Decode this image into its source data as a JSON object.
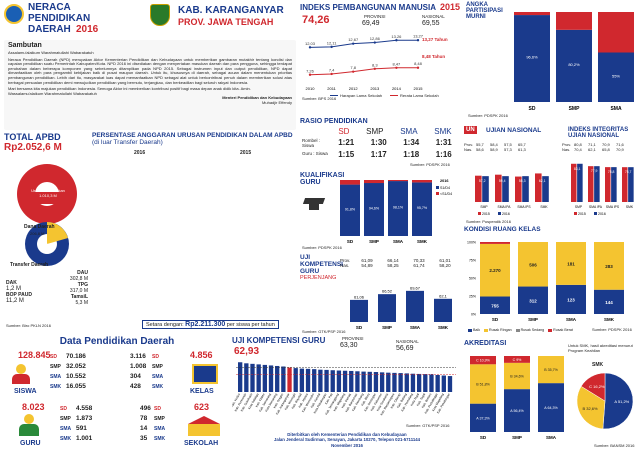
{
  "header": {
    "title_line1": "NERACA",
    "title_line2": "PENDIDIKAN",
    "title_line3": "DAERAH",
    "year": "2016",
    "region": "KAB. KARANGANYAR",
    "province": "PROV. JAWA TENGAH"
  },
  "sambutan": {
    "title": "Sambutan",
    "greeting": "Assalamu'alaikum Warahmatullahi Wabarakatuh",
    "paragraph1": "Neraca Pendidikan Daerah (NPD) merupakan Aktor Kementerian Pendidikan dan Kebudayaan untuk memberikan gambaran mutakhir tentang kondisi dan capaian pendidikan suatu Pemerintah Kabupaten/Kota. NPD 2016 ini disediakan dengan menyertakan masukan daerah dan para pengguna, sehingga terdapat perubahan dalam beberapa komponen yang sebelumnya ditampilkan pada NPD 2015. Sebagai instrumen input dan output pendidikan, NPD dapat dimanfaatkan oleh para pengambil kebijakan baik di pusat maupun daerah. Untuk itu, khususnya di daerah, sebagai acuan dalam menentukan prioritas pembangunan pendidikan. Lebih dari itu, masyarakat luas dapat memanfaatkan NPD sebagai alat untuk berkontribusi penuh dalam memberikan solusi atas berbagai persoalan pendidikan demi mewujudkan pendidikan yang bermutu, terjangkau, dan berkeadilan bagi seluruh rakyat Indonesia.",
    "paragraph2": "Mari bersama kita majukan pendidikan Indonesia. Semoga Aktor ini memberikan kontribusi positif bagi masa depan anak didik kita. Amin.",
    "closing": "Wassalamu'alaikum Warahmatullahi Wabarakatuh",
    "signature_title": "Menteri Pendidikan dan Kebudayaan",
    "signature_name": "Muhadjir Effendy"
  },
  "apbd": {
    "title": "TOTAL APBD",
    "total": "Rp2.052,6 M",
    "legend_urusan": "Urusan Pendidikan",
    "legend_urusan_val": "1.010,3 M",
    "dana_daerah": "Dana Daerah",
    "dana_daerah_val": "206,8 M",
    "transfer_daerah": "Transfer Daerah",
    "transfer_val": "803,5 M",
    "items_left": [
      {
        "label": "DAK",
        "value": "1,2 M"
      },
      {
        "label": "BOP PAUD",
        "value": "11,2 M"
      }
    ],
    "items_right": [
      {
        "label": "DAU",
        "value": "302,8 M"
      },
      {
        "label": "TPG",
        "value": "317,0 M"
      },
      {
        "label": "TamsiL",
        "value": "5,3 M"
      }
    ],
    "source": "Sumber: Biro PKLN 2016"
  },
  "anggaran": {
    "title": "PERSENTASE ANGGARAN URUSAN PENDIDIKAN DALAM APBD",
    "subtitle": "(di luar Transfer Daerah)",
    "year_left": "2016",
    "year_right": "2015",
    "setara_label": "Setara dengan:",
    "setara_value": "Rp2.211.300",
    "setara_suffix": "per siswa per tahun"
  },
  "ipm": {
    "title": "INDEKS PEMBANGUNAN MANUSIA",
    "year": "2015",
    "value": "74,26",
    "provinsi_label": "PROVINSI",
    "provinsi_value": "69,49",
    "nasional_label": "NASIONAL",
    "nasional_value": "69,55",
    "harapan_label": "13,27 Tahun",
    "rata_label": "8,48 Tahun",
    "years_x": [
      "2010",
      "2011",
      "2012",
      "2013",
      "2014",
      "2015"
    ],
    "legend_harapan": "Harapan Lama Sekolah",
    "legend_rata": "Rerata Lama Sekolah",
    "source": "Sumber: BPS 2016"
  },
  "apm": {
    "title": "ANGKA PARTISIPASI MURNI",
    "categories": [
      "SD",
      "SMP",
      "SMA"
    ],
    "source": "Sumber: PDSPK 2016"
  },
  "rasio": {
    "title": "RASIO PENDIDIKAN",
    "levels": [
      "SD",
      "SMP",
      "SMA",
      "SMK"
    ],
    "rombel_label": "Rombel : Siswa",
    "guru_label": "Guru : Siswa",
    "rombel": [
      "1:21",
      "1:30",
      "1:34",
      "1:31"
    ],
    "guru": [
      "1:15",
      "1:17",
      "1:18",
      "1:16"
    ],
    "source": "Sumber: PDSPK 2016"
  },
  "kualifikasi": {
    "title": "KUALIFIKASI GURU",
    "legend": [
      "2016",
      "S1/D4",
      "<S1/D4"
    ],
    "categories": [
      "SD",
      "SMP",
      "SMA",
      "SMK"
    ],
    "source": "Sumber: PDSPK 2016"
  },
  "ukg": {
    "title": "UJI KOMPETENSI GURU",
    "subtitle": "PERJENJANG",
    "rows": [
      {
        "label": "Prov.",
        "values": [
          "61,09",
          "66,14",
          "70,33",
          "61,01"
        ]
      },
      {
        "label": "Nas.",
        "values": [
          "54,89",
          "58,25",
          "61,74",
          "58,20"
        ]
      }
    ],
    "source": "Sumber: GTK/PSP 2016"
  },
  "un": {
    "title": "UJIAN NASIONAL",
    "tag": "UN",
    "rows": [
      {
        "label": "Prov.",
        "values": [
          "55,7",
          "58,4",
          "57,5",
          "65,7"
        ]
      },
      {
        "label": "Nas.",
        "values": [
          "58,6",
          "58,9",
          "57,3",
          "61,3"
        ]
      }
    ],
    "categories": [
      "SMP",
      "SMA IPA",
      "SMA IPS",
      "SMK"
    ],
    "legend": [
      "2015",
      "2016"
    ],
    "source": "Sumber: Puspendik 2016"
  },
  "iiun": {
    "title": "INDEKS INTEGRITAS UJIAN NASIONAL",
    "rows": [
      {
        "label": "Prov.",
        "values": [
          "80,8",
          "71,1",
          "70,9",
          "71,6"
        ]
      },
      {
        "label": "Nas.",
        "values": [
          "70,4",
          "62,1",
          "65,8",
          "70,9"
        ]
      }
    ],
    "categories": [
      "SMP",
      "SMA IPA",
      "SMA IPS",
      "SMK"
    ],
    "legend": [
      "2015",
      "2016"
    ]
  },
  "ruang": {
    "title": "KONDISI RUANG KELAS",
    "categories": [
      "SD",
      "SMP",
      "SMA",
      "SMK"
    ],
    "legend": [
      "Baik",
      "Rusak Ringan",
      "Rusak Sedang",
      "Rusak Berat"
    ],
    "source": "Sumber: PDSPK 2016"
  },
  "akreditasi": {
    "title": "AKREDITASI",
    "note": "Untuk SMK, hasil akreditasi menurut Program Keahlian",
    "smk_label": "SMK",
    "categories": [
      "SD",
      "SMP",
      "SMA"
    ],
    "source": "Sumber: BANSM 2016"
  },
  "ukg_kab": {
    "title": "UJI KOMPETENSI GURU",
    "value": "62,93",
    "provinsi_label": "PROVINSI",
    "provinsi_value": "63,30",
    "nasional_label": "NASIONAL",
    "nasional_value": "56,69",
    "source": "Sumber: GTK/PSP 2016"
  },
  "data_pendidikan": {
    "title": "Data Pendidikan Daerah",
    "siswa_total": "128.845",
    "siswa_label": "SISWA",
    "siswa_items": [
      {
        "level": "SD",
        "value": "70.186"
      },
      {
        "level": "SMP",
        "value": "32.052"
      },
      {
        "level": "SMA",
        "value": "10.552"
      },
      {
        "level": "SMK",
        "value": "16.055"
      }
    ],
    "kelas_total": "4.856",
    "kelas_label": "KELAS",
    "kelas_items": [
      {
        "level": "SD",
        "value": "3.116"
      },
      {
        "level": "SMP",
        "value": "1.008"
      },
      {
        "level": "SMA",
        "value": "304"
      },
      {
        "level": "SMK",
        "value": "428"
      }
    ],
    "guru_total": "8.023",
    "guru_label": "GURU",
    "guru_items": [
      {
        "level": "SD",
        "value": "4.558"
      },
      {
        "level": "SMP",
        "value": "1.873"
      },
      {
        "level": "SMA",
        "value": "591"
      },
      {
        "level": "SMK",
        "value": "1.001"
      }
    ],
    "sekolah_total": "623",
    "sekolah_label": "SEKOLAH",
    "sekolah_items": [
      {
        "level": "SD",
        "value": "496"
      },
      {
        "level": "SMP",
        "value": "78"
      },
      {
        "level": "SMA",
        "value": "14"
      },
      {
        "level": "SMK",
        "value": "35"
      }
    ]
  },
  "footer": {
    "line1": "Diterbitkan oleh Kementerian Pendidikan dan Kebudayaan",
    "line2": "Jalan Jenderal Sudirman, Senayan, Jakarta 10270, Telepon 021-5711144",
    "line3": "November 2016"
  },
  "chart_data": [
    {
      "type": "line",
      "title": "INDEKS PEMBANGUNAN MANUSIA",
      "x": [
        "2010",
        "2011",
        "2012",
        "2013",
        "2014",
        "2015"
      ],
      "series": [
        {
          "name": "Harapan Lama Sekolah",
          "values": [
            12.03,
            12.11,
            12.67,
            12.86,
            13.26,
            13.27
          ]
        },
        {
          "name": "Rerata Lama Sekolah",
          "values": [
            7.26,
            7.4,
            7.8,
            8.3,
            8.47,
            8.48
          ]
        }
      ]
    },
    {
      "type": "bar",
      "title": "ANGKA PARTISIPASI MURNI",
      "categories": [
        "SD",
        "SMP",
        "SMA"
      ],
      "series": [
        {
          "values": [
            96.6,
            80.2,
            55.0
          ]
        },
        {
          "values": [
            3.4,
            19.8,
            45.0
          ]
        }
      ],
      "ylim": [
        0,
        100
      ]
    },
    {
      "type": "bar",
      "title": "KUALIFIKASI GURU",
      "categories": [
        "SD",
        "SMP",
        "SMA",
        "SMK"
      ],
      "series": [
        {
          "name": "S1/D4",
          "values": [
            91.8,
            94.6,
            98.1,
            95.7
          ]
        },
        {
          "name": "<S1/D4",
          "values": [
            8.2,
            5.4,
            1.9,
            4.3
          ]
        }
      ],
      "ylim": [
        0,
        100
      ]
    },
    {
      "type": "bar",
      "title": "UJI KOMPETENSI GURU PERJENJANG",
      "categories": [
        "SD",
        "SMP",
        "SMA",
        "SMK"
      ],
      "values": [
        61.06,
        66.52,
        69.67,
        62.1
      ]
    },
    {
      "type": "bar",
      "title": "UJIAN NASIONAL",
      "categories": [
        "SMP",
        "SMA IPA",
        "SMA IPS",
        "SMK"
      ],
      "series": [
        {
          "name": "2015",
          "values": [
            57.2,
            59.4,
            55.3,
            62.1
          ]
        },
        {
          "name": "2016",
          "values": [
            56.2,
            56.2,
            56.2,
            56.2
          ]
        }
      ],
      "ylim": [
        0,
        100
      ]
    },
    {
      "type": "bar",
      "title": "INDEKS INTEGRITAS UJIAN NASIONAL",
      "categories": [
        "SMP",
        "SMA IPA",
        "SMA IPS",
        "SMK"
      ],
      "series": [
        {
          "name": "2015",
          "values": [
            83.1,
            77.9,
            75.8,
            75.7
          ]
        },
        {
          "name": "2016",
          "values": [
            83.1,
            77.9,
            75.8,
            75.7
          ]
        }
      ],
      "ylim": [
        0,
        100
      ]
    },
    {
      "type": "bar",
      "title": "KONDISI RUANG KELAS",
      "categories": [
        "SD",
        "SMP",
        "SMA",
        "SMK"
      ],
      "series": [
        {
          "name": "Baik",
          "values": [
            755,
            312,
            123,
            144
          ]
        },
        {
          "name": "Rusak Ringan",
          "values": [
            2270,
            506,
            181,
            283
          ]
        },
        {
          "name": "Rusak Berat",
          "values": [
            83,
            0,
            0,
            0
          ]
        }
      ]
    },
    {
      "type": "bar",
      "title": "UJI KOMPETENSI GURU",
      "categories": [
        "Kab. Kudus",
        "Kab. Purworejo",
        "Kab. Sukoharjo",
        "Kota Salatiga",
        "Kab. Klaten",
        "Kab. Semarang",
        "Kota Semarang",
        "Kab. Sragen",
        "Kab. Karanganyar",
        "Kab. Wonogiri",
        "Kab. Boyolali",
        "Kab. Jepara",
        "Kab. Wonosobo",
        "Kab. Kendal",
        "Kota Pekalongan",
        "Kab. Pati",
        "Kab. Temanggung",
        "Kab. Magelang",
        "Kab. Demak",
        "Kab. Banyumas",
        "Kab. Rembang",
        "Kab. Blora",
        "Kab. Grobogan",
        "Kab. Kebumen",
        "Kota Surakarta",
        "Kab. Banjarnegara",
        "Kab. Cilacap",
        "Kab. Batang",
        "Kab. Pemalang",
        "Kota Tegal",
        "Kab. Tegal",
        "Kab. Brebes",
        "Kab. Purbalingga",
        "Kota Magelang",
        "Kab. Pekalongan"
      ],
      "values": [
        68,
        67,
        66.5,
        66,
        65.5,
        65,
        64.5,
        64,
        62.93,
        62.5,
        62,
        61.8,
        61.5,
        61,
        60.8,
        60.5,
        60.2,
        60,
        59.8,
        59.5,
        59.2,
        59,
        58.8,
        58.5,
        58.2,
        58,
        57.8,
        57.5,
        57.2,
        57,
        56.8,
        56.5,
        56,
        55.5,
        55
      ]
    },
    {
      "type": "bar",
      "title": "AKREDITASI",
      "categories": [
        "SD",
        "SMP",
        "SMA"
      ],
      "series": [
        {
          "name": "A",
          "values": [
            37.3,
            56.4,
            64.3
          ]
        },
        {
          "name": "B",
          "values": [
            51.8,
            34.6,
            35.7
          ]
        },
        {
          "name": "C",
          "values": [
            10.9,
            9.0,
            0
          ]
        }
      ]
    },
    {
      "type": "pie",
      "title": "SMK",
      "categories": [
        "A",
        "B",
        "C"
      ],
      "values": [
        51.2,
        32.6,
        16.2
      ]
    }
  ]
}
